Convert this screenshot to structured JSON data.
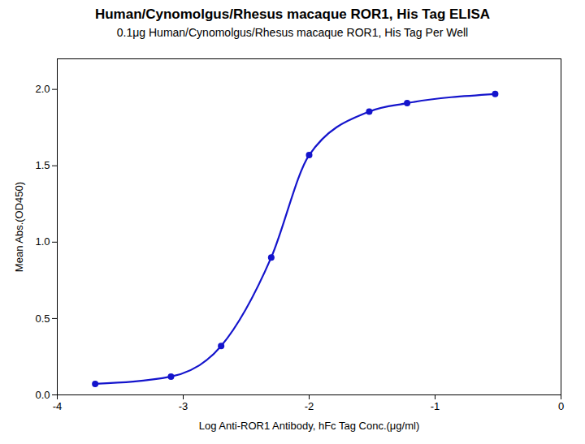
{
  "chart_data": {
    "type": "line",
    "title": "Human/Cynomolgus/Rhesus macaque ROR1, His Tag ELISA",
    "subtitle": "0.1μg Human/Cynomolgus/Rhesus macaque ROR1, His Tag Per Well",
    "xlabel": "Log Anti-ROR1 Antibody, hFc Tag Conc.(μg/ml)",
    "ylabel": "Mean Abs.(OD450)",
    "x": [
      -3.699,
      -3.097,
      -2.699,
      -2.301,
      -2.0,
      -1.523,
      -1.222,
      -0.523
    ],
    "values": [
      0.072,
      0.12,
      0.32,
      0.9,
      1.57,
      1.855,
      1.91,
      1.97
    ],
    "color": "#1414CC",
    "marker": "circle",
    "xlim": [
      -4.0,
      0.0
    ],
    "ylim": [
      0.0,
      2.2
    ],
    "xticks": [
      -4,
      -3,
      -2,
      -1,
      0
    ],
    "yticks": [
      {
        "value": 0,
        "label": "0.0"
      },
      0.5,
      {
        "value": 1,
        "label": "1.0"
      },
      1.5,
      {
        "value": 2,
        "label": "2.0"
      }
    ],
    "grid": false
  }
}
